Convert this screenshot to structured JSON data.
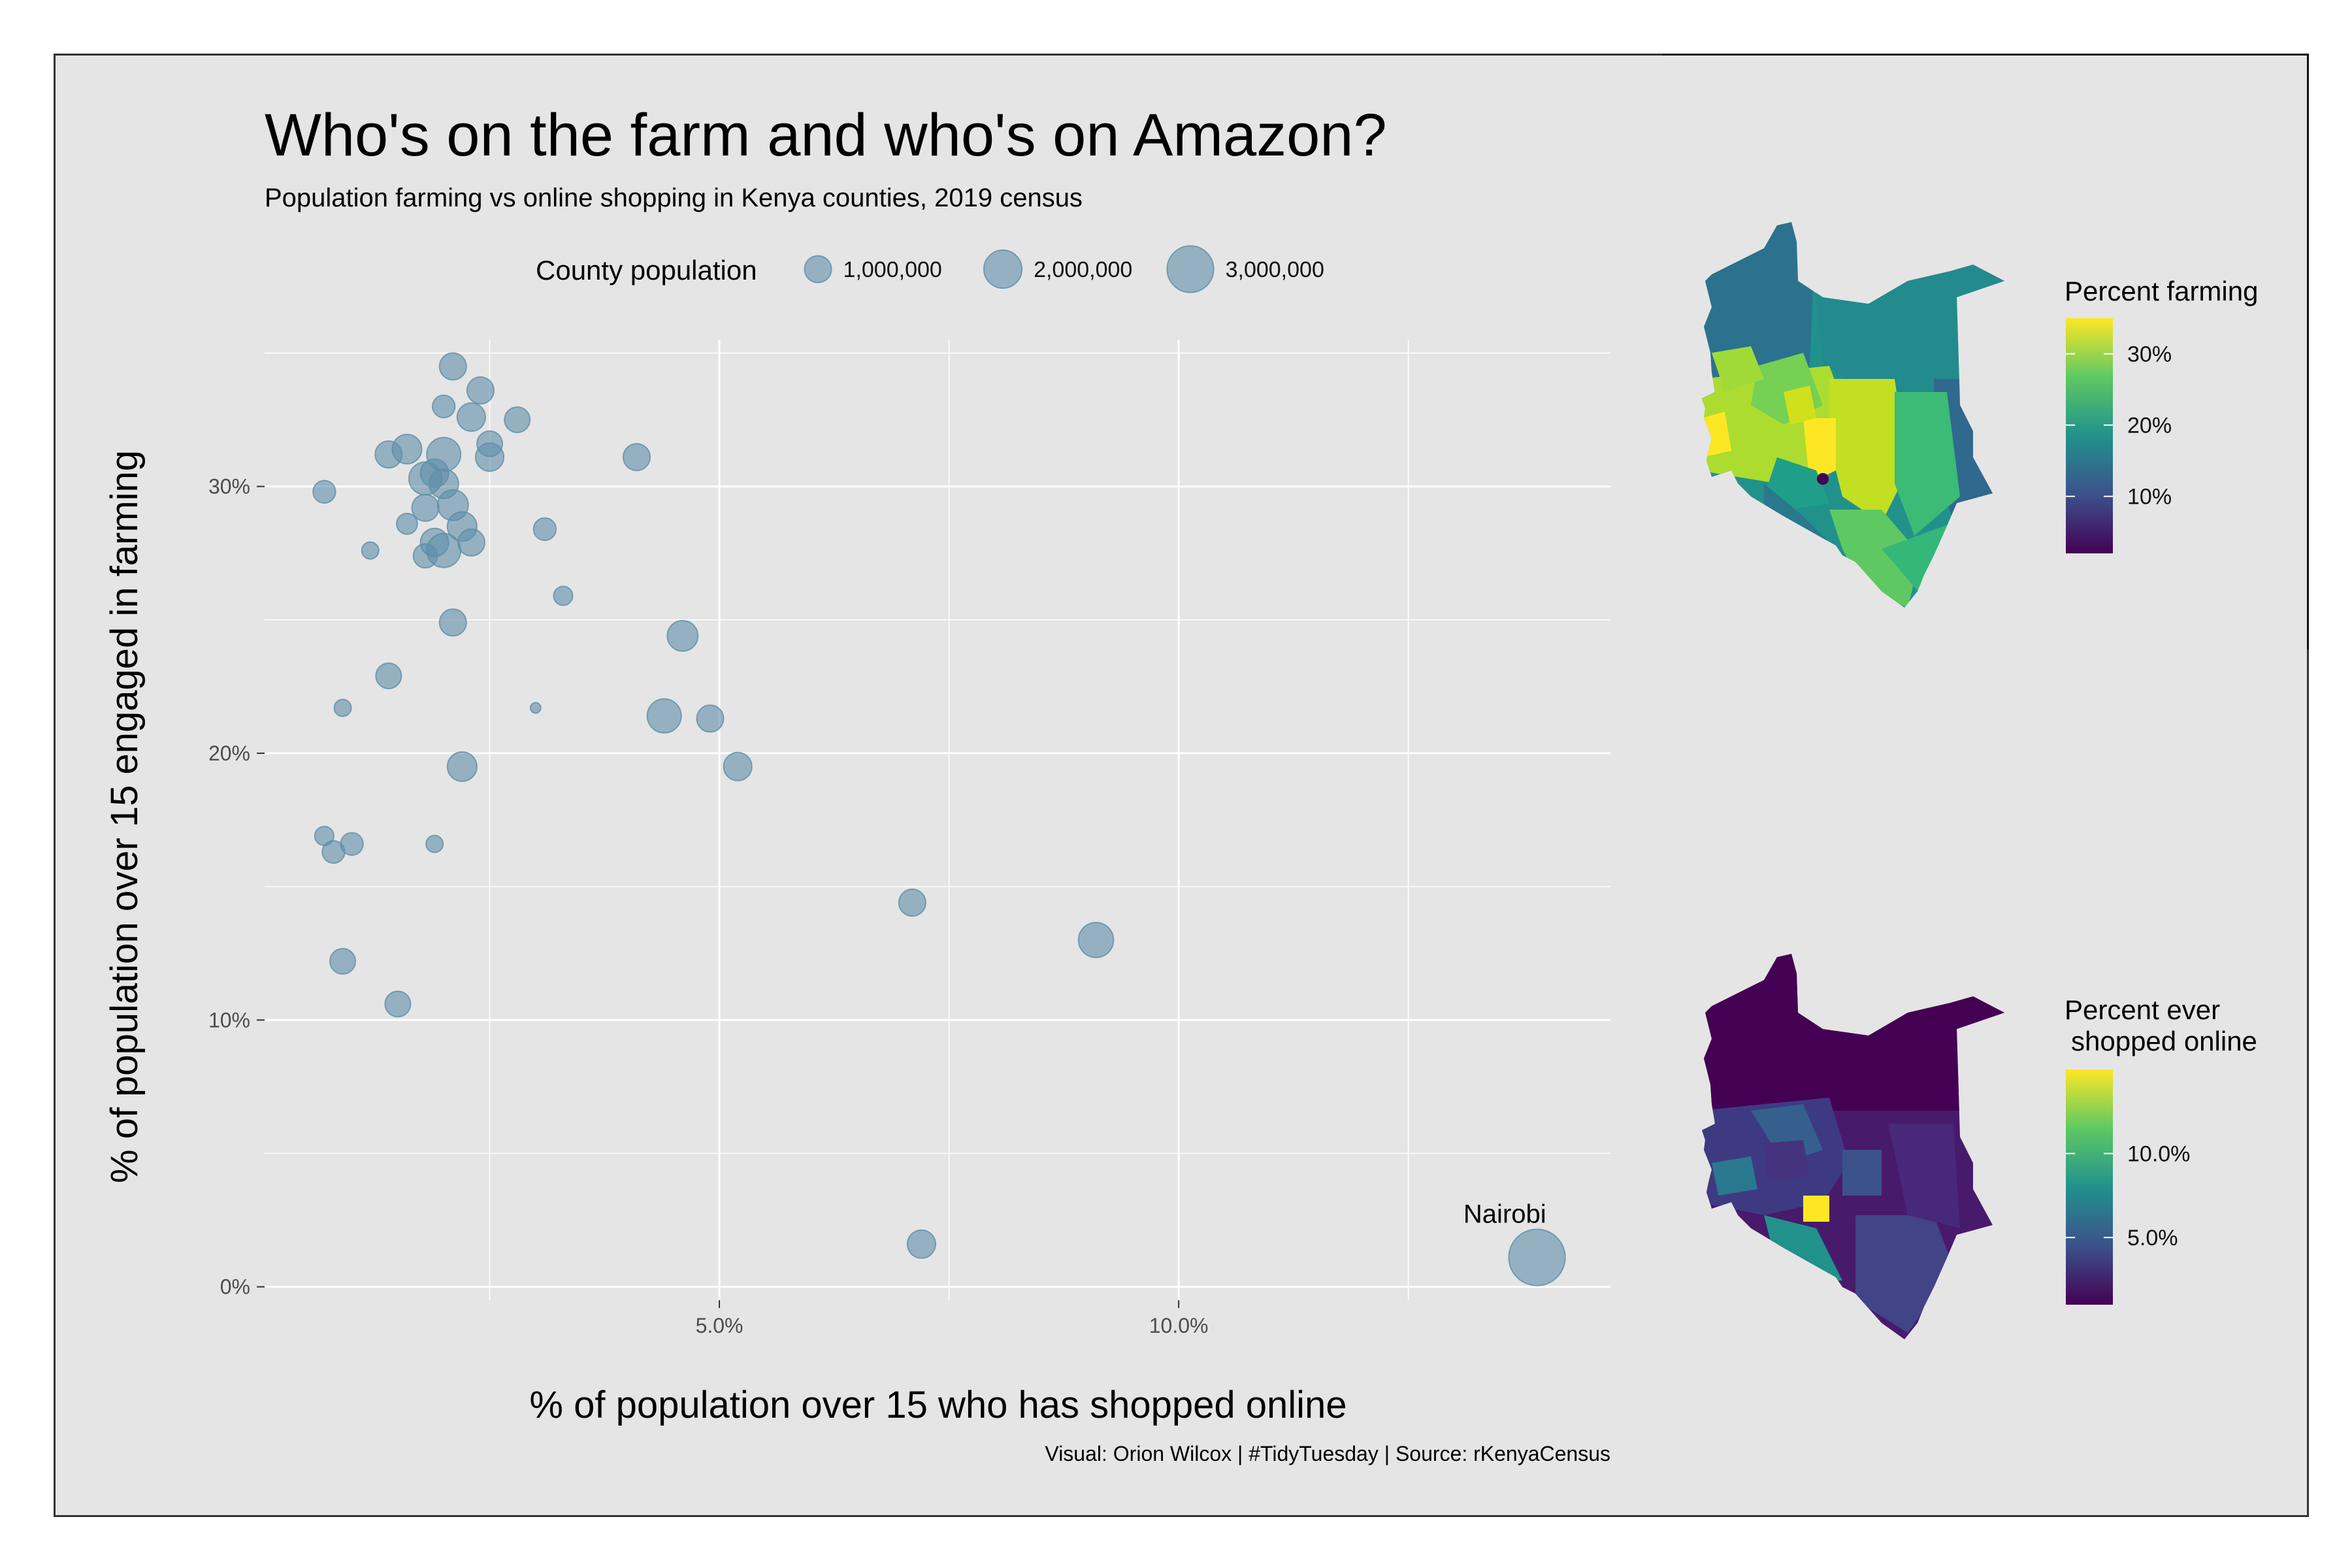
{
  "title": "Who's on the farm and who's on Amazon?",
  "subtitle": "Population farming vs online shopping in Kenya counties, 2019 census",
  "caption": "Visual: Orion Wilcox | #TidyTuesday | Source: rKenyaCensus",
  "size_legend": {
    "title": "County population",
    "labels": [
      "1,000,000",
      "2,000,000",
      "3,000,000"
    ],
    "values": [
      1000000,
      2000000,
      3000000
    ]
  },
  "map_farming": {
    "title": "Percent farming",
    "ticks": [
      "30%",
      "20%",
      "10%"
    ],
    "tick_values": [
      30,
      20,
      10
    ],
    "range": [
      2,
      35
    ]
  },
  "map_online": {
    "title_line1": "Percent ever",
    "title_line2": "shopped online",
    "ticks": [
      "10.0%",
      "5.0%"
    ],
    "tick_values": [
      10,
      5
    ],
    "range": [
      1,
      15
    ]
  },
  "colors": {
    "point": "#5f8ea8",
    "panel": "#e5e5e5",
    "grid": "#ffffff",
    "viridis_low": "#440154",
    "viridis_mid": "#21918c",
    "viridis_high": "#fde725"
  },
  "chart_data": {
    "type": "scatter",
    "xlabel": "% of population over 15 who has shopped online",
    "ylabel": "% of population over 15 engaged in farming",
    "xlim": [
      0.05,
      14.7
    ],
    "ylim": [
      -0.5,
      35.5
    ],
    "x_ticks": [
      5,
      10
    ],
    "x_tick_labels": [
      "5.0%",
      "10.0%"
    ],
    "y_ticks": [
      0,
      10,
      20,
      30
    ],
    "y_tick_labels": [
      "0%",
      "10%",
      "20%",
      "30%"
    ],
    "grid": true,
    "legend_position": "top",
    "annotations": [
      {
        "text": "Nairobi",
        "x": 13.55,
        "y": 2.4
      }
    ],
    "points": [
      {
        "x": 2.1,
        "y": 34.5,
        "pop": 1000000
      },
      {
        "x": 2.4,
        "y": 33.6,
        "pop": 1000000
      },
      {
        "x": 2.0,
        "y": 33.0,
        "pop": 700000
      },
      {
        "x": 2.3,
        "y": 32.6,
        "pop": 1100000
      },
      {
        "x": 2.8,
        "y": 32.5,
        "pop": 900000
      },
      {
        "x": 1.4,
        "y": 31.2,
        "pop": 1000000
      },
      {
        "x": 1.6,
        "y": 31.4,
        "pop": 1200000
      },
      {
        "x": 2.5,
        "y": 31.6,
        "pop": 900000
      },
      {
        "x": 2.0,
        "y": 31.2,
        "pop": 1600000
      },
      {
        "x": 2.5,
        "y": 31.1,
        "pop": 1100000
      },
      {
        "x": 4.1,
        "y": 31.1,
        "pop": 1000000
      },
      {
        "x": 1.9,
        "y": 30.5,
        "pop": 1100000
      },
      {
        "x": 1.8,
        "y": 30.3,
        "pop": 1500000
      },
      {
        "x": 2.0,
        "y": 30.1,
        "pop": 1200000
      },
      {
        "x": 0.7,
        "y": 29.8,
        "pop": 700000
      },
      {
        "x": 2.1,
        "y": 29.3,
        "pop": 1300000
      },
      {
        "x": 1.8,
        "y": 29.2,
        "pop": 1000000
      },
      {
        "x": 1.6,
        "y": 28.6,
        "pop": 600000
      },
      {
        "x": 2.2,
        "y": 28.5,
        "pop": 1200000
      },
      {
        "x": 3.1,
        "y": 28.4,
        "pop": 700000
      },
      {
        "x": 1.9,
        "y": 27.9,
        "pop": 1100000
      },
      {
        "x": 2.3,
        "y": 27.9,
        "pop": 1000000
      },
      {
        "x": 2.0,
        "y": 27.6,
        "pop": 1600000
      },
      {
        "x": 1.8,
        "y": 27.4,
        "pop": 800000
      },
      {
        "x": 1.2,
        "y": 27.6,
        "pop": 400000
      },
      {
        "x": 3.3,
        "y": 25.9,
        "pop": 500000
      },
      {
        "x": 2.1,
        "y": 24.9,
        "pop": 1000000
      },
      {
        "x": 4.6,
        "y": 24.4,
        "pop": 1300000
      },
      {
        "x": 1.4,
        "y": 22.9,
        "pop": 900000
      },
      {
        "x": 0.9,
        "y": 21.7,
        "pop": 400000
      },
      {
        "x": 3.0,
        "y": 21.7,
        "pop": 150000
      },
      {
        "x": 4.4,
        "y": 21.4,
        "pop": 1600000
      },
      {
        "x": 4.9,
        "y": 21.3,
        "pop": 1000000
      },
      {
        "x": 2.2,
        "y": 19.5,
        "pop": 1200000
      },
      {
        "x": 5.2,
        "y": 19.5,
        "pop": 1100000
      },
      {
        "x": 0.7,
        "y": 16.9,
        "pop": 500000
      },
      {
        "x": 1.0,
        "y": 16.6,
        "pop": 700000
      },
      {
        "x": 0.8,
        "y": 16.3,
        "pop": 700000
      },
      {
        "x": 1.9,
        "y": 16.6,
        "pop": 400000
      },
      {
        "x": 7.1,
        "y": 14.4,
        "pop": 1000000
      },
      {
        "x": 9.1,
        "y": 13.0,
        "pop": 1700000
      },
      {
        "x": 0.9,
        "y": 12.2,
        "pop": 900000
      },
      {
        "x": 1.5,
        "y": 10.6,
        "pop": 900000
      },
      {
        "x": 7.2,
        "y": 1.6,
        "pop": 1100000
      },
      {
        "x": 13.9,
        "y": 1.1,
        "pop": 4400000
      }
    ]
  }
}
